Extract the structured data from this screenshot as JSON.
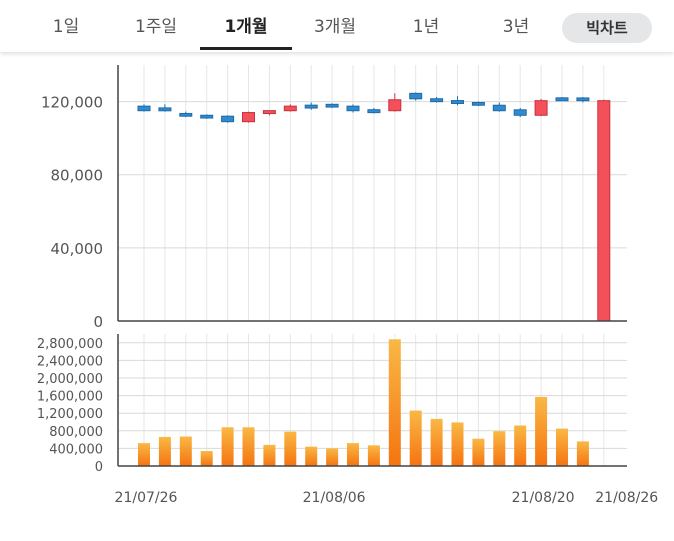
{
  "tabs": [
    {
      "label": "1일"
    },
    {
      "label": "1주일"
    },
    {
      "label": "1개월"
    },
    {
      "label": "3개월"
    },
    {
      "label": "1년"
    },
    {
      "label": "3년"
    }
  ],
  "active_tab": "1개월",
  "big_chart_label": "빅차트",
  "colors": {
    "up": "#f4505a",
    "down": "#2f8bd0",
    "volume": "#f7931e",
    "grid": "#d9d9d9"
  },
  "chart_data": [
    {
      "type": "candlestick",
      "ylim": [
        0,
        140000
      ],
      "y_ticks": [
        "0",
        "40,000",
        "80,000",
        "120,000"
      ],
      "y_tick_values": [
        0,
        40000,
        80000,
        120000
      ],
      "grid": true,
      "candles": [
        {
          "o": 117500,
          "h": 118500,
          "l": 114500,
          "c": 115000
        },
        {
          "o": 116000,
          "h": 118500,
          "l": 114500,
          "c": 115500
        },
        {
          "o": 113500,
          "h": 114500,
          "l": 111500,
          "c": 112000
        },
        {
          "o": 112500,
          "h": 113000,
          "l": 110500,
          "c": 111000
        },
        {
          "o": 112000,
          "h": 112500,
          "l": 108500,
          "c": 109000
        },
        {
          "o": 109000,
          "h": 114500,
          "l": 108500,
          "c": 114000
        },
        {
          "o": 114000,
          "h": 115000,
          "l": 112500,
          "c": 114500
        },
        {
          "o": 115000,
          "h": 118500,
          "l": 114500,
          "c": 117500
        },
        {
          "o": 117500,
          "h": 119500,
          "l": 115500,
          "c": 117000
        },
        {
          "o": 118500,
          "h": 119000,
          "l": 116500,
          "c": 117000
        },
        {
          "o": 117500,
          "h": 118500,
          "l": 114000,
          "c": 115000
        },
        {
          "o": 115000,
          "h": 116500,
          "l": 113500,
          "c": 114500
        },
        {
          "o": 115000,
          "h": 124500,
          "l": 114500,
          "c": 121000
        },
        {
          "o": 124500,
          "h": 125000,
          "l": 120500,
          "c": 121500
        },
        {
          "o": 121000,
          "h": 122500,
          "l": 119500,
          "c": 120500
        },
        {
          "o": 120000,
          "h": 123000,
          "l": 118000,
          "c": 119500
        },
        {
          "o": 119500,
          "h": 120000,
          "l": 117500,
          "c": 118000
        },
        {
          "o": 118000,
          "h": 119500,
          "l": 114500,
          "c": 115000
        },
        {
          "o": 115500,
          "h": 116500,
          "l": 111500,
          "c": 112500
        },
        {
          "o": 112500,
          "h": 121500,
          "l": 112000,
          "c": 120500
        },
        {
          "o": 121500,
          "h": 122500,
          "l": 120500,
          "c": 121000
        },
        {
          "o": 122000,
          "h": 122500,
          "l": 119500,
          "c": 120500
        },
        {
          "o": 0,
          "h": 121000,
          "l": 0,
          "c": 120500
        }
      ]
    },
    {
      "type": "bar",
      "ylim": [
        0,
        3000000
      ],
      "y_ticks": [
        "0",
        "400,000",
        "800,000",
        "1,200,000",
        "1,600,000",
        "2,000,000",
        "2,400,000",
        "2,800,000"
      ],
      "y_tick_values": [
        0,
        400000,
        800000,
        1200000,
        1600000,
        2000000,
        2400000,
        2800000
      ],
      "x_tick_labels": [
        "21/07/26",
        "21/08/06",
        "21/08/20",
        "21/08/26"
      ],
      "x_tick_index": [
        0,
        9,
        19,
        23
      ],
      "grid": true,
      "values": [
        520000,
        660000,
        670000,
        340000,
        880000,
        880000,
        480000,
        780000,
        440000,
        400000,
        520000,
        470000,
        2880000,
        1260000,
        1070000,
        990000,
        620000,
        790000,
        920000,
        1570000,
        850000,
        560000,
        0
      ]
    }
  ]
}
